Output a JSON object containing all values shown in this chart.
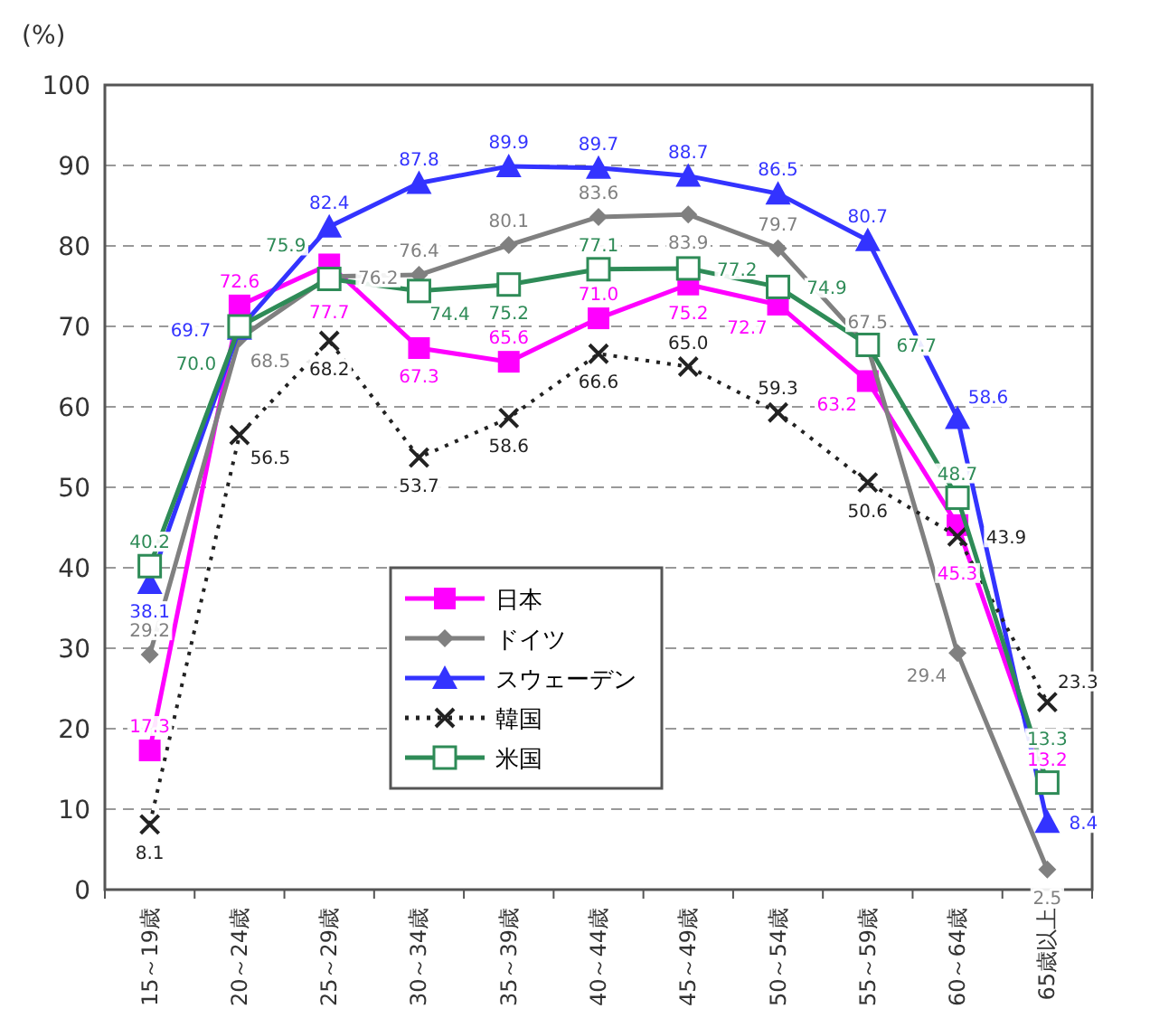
{
  "chart_data": {
    "type": "line",
    "ylabel": "(%)",
    "categories": [
      "15～19歳",
      "20～24歳",
      "25～29歳",
      "30～34歳",
      "35～39歳",
      "40～44歳",
      "45～49歳",
      "50～54歳",
      "55～59歳",
      "60～64歳",
      "65歳以上"
    ],
    "ylim": [
      0,
      100
    ],
    "yticks": [
      0,
      10,
      20,
      30,
      40,
      50,
      60,
      70,
      80,
      90,
      100
    ],
    "grid": "y",
    "legend": "bottom",
    "data_labels": true,
    "series": [
      {
        "name": "日本",
        "color": "#ff00ff",
        "marker": "square",
        "line_style": "solid",
        "values": [
          17.3,
          72.6,
          77.7,
          67.3,
          65.6,
          71.0,
          75.2,
          72.7,
          63.2,
          45.3,
          13.2
        ],
        "value_labels": [
          "17.3",
          "72.6",
          "77.7",
          "67.3",
          "65.6",
          "71.0",
          "75.2",
          "72.7",
          "63.2",
          "45.3",
          "13.2"
        ]
      },
      {
        "name": "ドイツ",
        "color": "#808080",
        "marker": "diamond",
        "line_style": "solid",
        "values": [
          29.2,
          68.5,
          76.2,
          76.4,
          80.1,
          83.6,
          83.9,
          79.7,
          67.5,
          29.4,
          2.5
        ],
        "value_labels": [
          "29.2",
          "68.5",
          "76.2",
          "76.4",
          "80.1",
          "83.6",
          "83.9",
          "79.7",
          "67.5",
          "29.4",
          "2.5"
        ]
      },
      {
        "name": "スウェーデン",
        "color": "#3333ff",
        "marker": "triangle",
        "line_style": "solid",
        "values": [
          38.1,
          69.7,
          82.4,
          87.8,
          89.9,
          89.7,
          88.7,
          86.5,
          80.7,
          58.6,
          8.4
        ],
        "value_labels": [
          "38.1",
          "69.7",
          "82.4",
          "87.8",
          "89.9",
          "89.7",
          "88.7",
          "86.5",
          "80.7",
          "58.6",
          "8.4"
        ]
      },
      {
        "name": "韓国",
        "color": "#222222",
        "marker": "cross",
        "line_style": "dotted",
        "values": [
          8.1,
          56.5,
          68.2,
          53.7,
          58.6,
          66.6,
          65.0,
          59.3,
          50.6,
          43.9,
          23.3
        ],
        "value_labels": [
          "8.1",
          "56.5",
          "68.2",
          "53.7",
          "58.6",
          "66.6",
          "65.0",
          "59.3",
          "50.6",
          "43.9",
          "23.3"
        ]
      },
      {
        "name": "米国",
        "color": "#2e8b57",
        "marker": "square_open",
        "line_style": "solid",
        "values": [
          40.2,
          70.0,
          75.9,
          74.4,
          75.2,
          77.1,
          77.2,
          74.9,
          67.7,
          48.7,
          13.3
        ],
        "value_labels": [
          "40.2",
          "70.0",
          "75.9",
          "74.4",
          "75.2",
          "77.1",
          "77.2",
          "74.9",
          "67.7",
          "48.7",
          "13.3"
        ]
      }
    ]
  }
}
